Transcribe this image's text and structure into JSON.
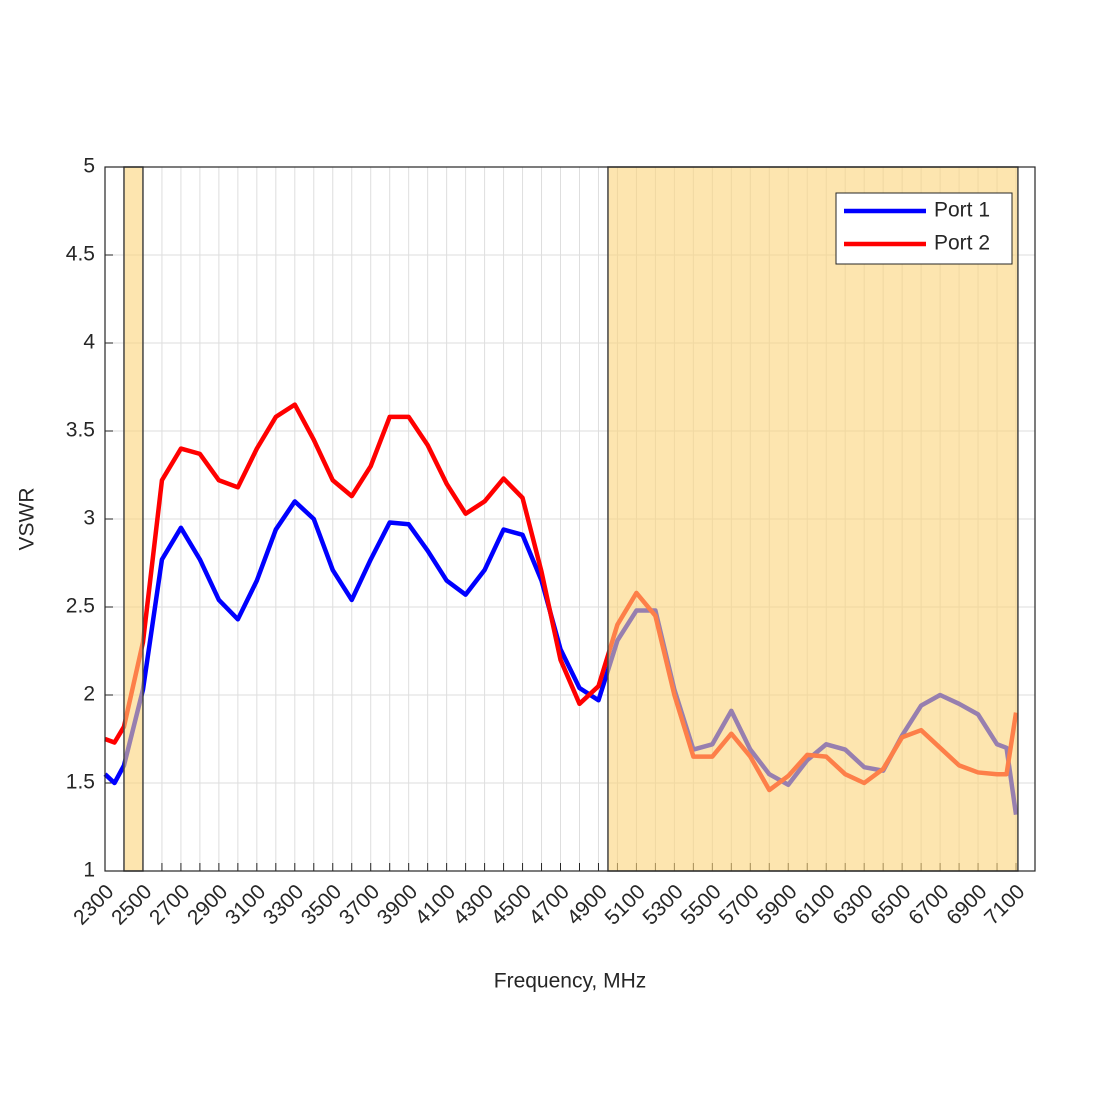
{
  "chart_data": {
    "type": "line",
    "x_label": "Frequency, MHz",
    "y_label": "VSWR",
    "x": [
      2300,
      2350,
      2400,
      2500,
      2600,
      2700,
      2800,
      2900,
      3000,
      3100,
      3200,
      3300,
      3400,
      3500,
      3600,
      3700,
      3800,
      3900,
      4000,
      4100,
      4200,
      4300,
      4400,
      4500,
      4600,
      4700,
      4800,
      4900,
      5000,
      5100,
      5200,
      5300,
      5400,
      5500,
      5600,
      5700,
      5800,
      5900,
      6000,
      6100,
      6200,
      6300,
      6400,
      6500,
      6600,
      6700,
      6800,
      6900,
      7000,
      7050,
      7100
    ],
    "series": [
      {
        "name": "Port 1",
        "color": "#0000ff",
        "values": [
          1.55,
          1.5,
          1.6,
          2.03,
          2.77,
          2.95,
          2.77,
          2.54,
          2.43,
          2.65,
          2.94,
          3.1,
          3.0,
          2.71,
          2.54,
          2.77,
          2.98,
          2.97,
          2.82,
          2.65,
          2.57,
          2.71,
          2.94,
          2.91,
          2.65,
          2.26,
          2.04,
          1.97,
          2.31,
          2.48,
          2.48,
          2.03,
          1.69,
          1.72,
          1.91,
          1.69,
          1.55,
          1.49,
          1.63,
          1.72,
          1.69,
          1.59,
          1.57,
          1.77,
          1.94,
          2.0,
          1.95,
          1.89,
          1.72,
          1.7,
          1.32
        ]
      },
      {
        "name": "Port 2",
        "color": "#ff0000",
        "values": [
          1.75,
          1.73,
          1.82,
          2.3,
          3.22,
          3.4,
          3.37,
          3.22,
          3.18,
          3.4,
          3.58,
          3.65,
          3.45,
          3.22,
          3.13,
          3.3,
          3.58,
          3.58,
          3.42,
          3.2,
          3.03,
          3.1,
          3.23,
          3.12,
          2.7,
          2.2,
          1.95,
          2.05,
          2.4,
          2.58,
          2.45,
          2.0,
          1.65,
          1.65,
          1.78,
          1.65,
          1.46,
          1.54,
          1.66,
          1.65,
          1.55,
          1.5,
          1.58,
          1.76,
          1.8,
          1.7,
          1.6,
          1.56,
          1.55,
          1.55,
          1.9
        ]
      }
    ],
    "xlim": [
      2300,
      7200
    ],
    "xticks": [
      2300,
      2500,
      2700,
      2900,
      3100,
      3300,
      3500,
      3700,
      3900,
      4100,
      4300,
      4500,
      4700,
      4900,
      5100,
      5300,
      5500,
      5700,
      5900,
      6100,
      6300,
      6500,
      6700,
      6900,
      7100
    ],
    "xminorticks": [
      2400,
      2600,
      2800,
      3000,
      3200,
      3400,
      3600,
      3800,
      4000,
      4200,
      4400,
      4600,
      4800,
      5000,
      5200,
      5400,
      5600,
      5800,
      6000,
      6200,
      6400,
      6600,
      6800,
      7000,
      7200
    ],
    "ylim": [
      1,
      5
    ],
    "yticks": [
      1,
      1.5,
      2,
      2.5,
      3,
      3.5,
      4,
      4.5,
      5
    ],
    "grid": true,
    "legend": "upper-right",
    "bands": [
      [
        2400,
        2500
      ],
      [
        4950,
        7110
      ]
    ],
    "band_color": "#fbd47a"
  }
}
